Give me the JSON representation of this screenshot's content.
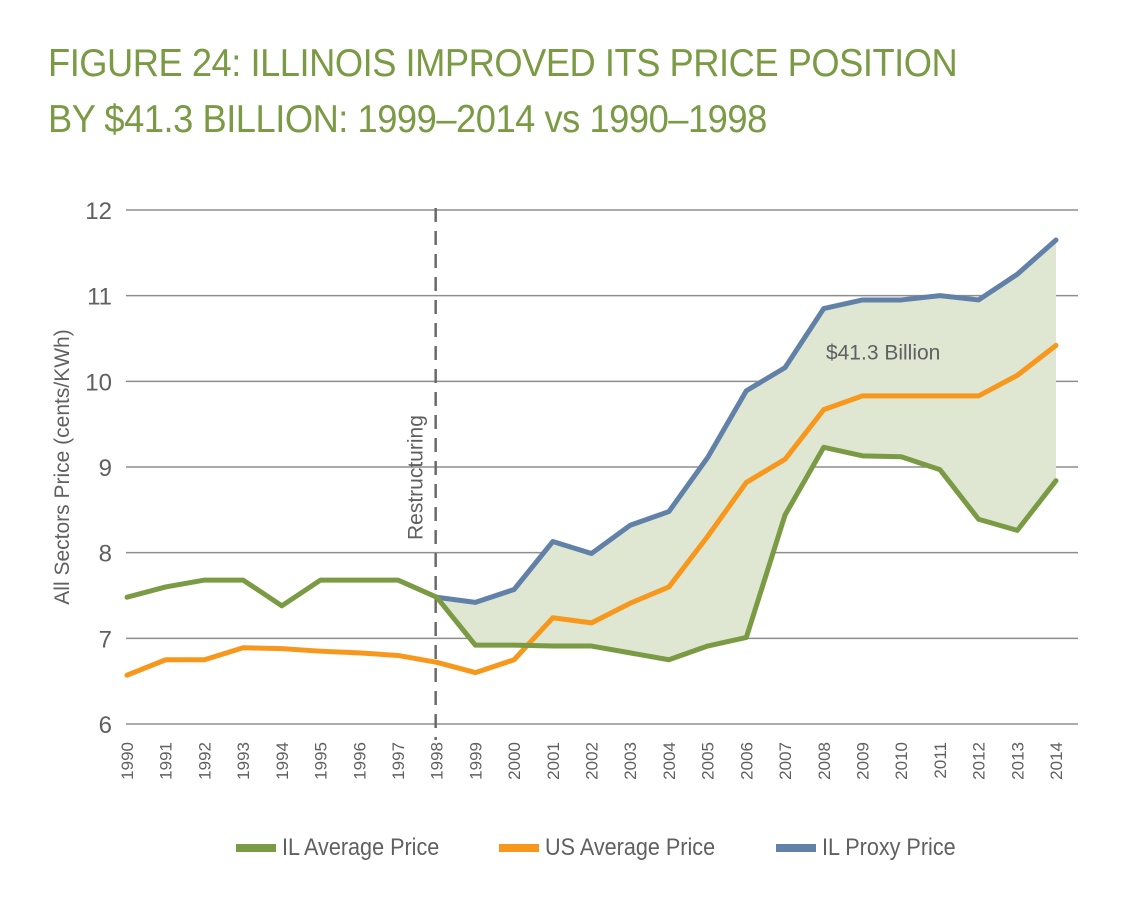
{
  "title_lines": [
    "FIGURE 24: ILLINOIS IMPROVED ITS PRICE POSITION",
    "BY $41.3 BILLION: 1999–2014 vs 1990–1998"
  ],
  "colors": {
    "title": "#7a9a44",
    "il_average": "#7a9a44",
    "us_average": "#f7981d",
    "il_proxy": "#6281a8",
    "fill": "#dfe6d1",
    "grid": "#8e8e8e",
    "text": "#5f6062"
  },
  "chart_data": {
    "type": "line",
    "title": "FIGURE 24: ILLINOIS IMPROVED ITS PRICE POSITION BY $41.3 BILLION: 1999–2014 vs 1990–1998",
    "xlabel": "",
    "ylabel": "All Sectors Price (cents/KWh)",
    "ylim": [
      6,
      12
    ],
    "yticks": [
      6,
      7,
      8,
      9,
      10,
      11,
      12
    ],
    "grid": true,
    "legend_position": "bottom",
    "x": [
      1990,
      1991,
      1992,
      1993,
      1994,
      1995,
      1996,
      1997,
      1998,
      1999,
      2000,
      2001,
      2002,
      2003,
      2004,
      2005,
      2006,
      2007,
      2008,
      2009,
      2010,
      2011,
      2012,
      2013,
      2014
    ],
    "series": [
      {
        "name": "IL Average Price",
        "color_key": "il_average",
        "values": [
          7.48,
          7.6,
          7.68,
          7.68,
          7.38,
          7.68,
          7.68,
          7.68,
          7.48,
          6.92,
          6.92,
          6.91,
          6.91,
          6.83,
          6.75,
          6.91,
          7.01,
          8.44,
          9.23,
          9.13,
          9.12,
          8.97,
          8.39,
          8.26,
          8.84
        ]
      },
      {
        "name": "US Average Price",
        "color_key": "us_average",
        "values": [
          6.57,
          6.75,
          6.75,
          6.89,
          6.88,
          6.85,
          6.83,
          6.8,
          6.72,
          6.6,
          6.75,
          7.24,
          7.18,
          7.41,
          7.6,
          8.19,
          8.82,
          9.09,
          9.67,
          9.83,
          9.83,
          9.83,
          9.83,
          10.07,
          10.42
        ]
      },
      {
        "name": "IL Proxy Price",
        "color_key": "il_proxy",
        "values": [
          null,
          null,
          null,
          null,
          null,
          null,
          null,
          null,
          7.48,
          7.42,
          7.57,
          8.13,
          7.99,
          8.32,
          8.48,
          9.11,
          9.89,
          10.16,
          10.85,
          10.95,
          10.95,
          11.0,
          10.95,
          11.25,
          11.65
        ]
      }
    ],
    "shaded_region": {
      "between": [
        "IL Proxy Price",
        "IL Average Price"
      ],
      "from": 1998,
      "to": 2014,
      "label": "$41.3 Billion"
    },
    "annotations": [
      {
        "type": "vline",
        "x": 1998,
        "style": "dashed",
        "label": "Restructuring"
      },
      {
        "type": "text",
        "text": "$41.3 Billion",
        "x": 2010,
        "y": 10.35
      }
    ]
  }
}
